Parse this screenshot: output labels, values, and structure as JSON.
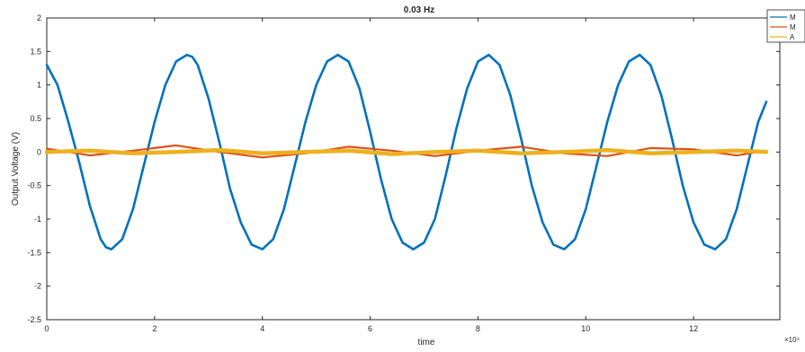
{
  "chart_data": {
    "type": "line",
    "title": "0.03 Hz",
    "xlabel": "time",
    "ylabel": "Output Voltage (V)",
    "x_multiplier": "×10⁴",
    "xlim": [
      0,
      13.6
    ],
    "ylim": [
      -2.5,
      2
    ],
    "xticks": [
      0,
      2,
      4,
      6,
      8,
      10,
      12
    ],
    "yticks": [
      -2.5,
      -2,
      -1.5,
      -1,
      -0.5,
      0,
      0.5,
      1,
      1.5,
      2
    ],
    "grid": false,
    "legend_position": "top-right",
    "legend_labels_partially_visible": [
      "M",
      "M",
      "A"
    ],
    "series": [
      {
        "color": "#0072BD",
        "x": [
          0,
          0.2,
          0.4,
          0.6,
          0.8,
          1.0,
          1.1,
          1.2,
          1.4,
          1.6,
          1.8,
          2.0,
          2.2,
          2.4,
          2.6,
          2.7,
          2.8,
          3.0,
          3.2,
          3.4,
          3.6,
          3.8,
          4.0,
          4.2,
          4.4,
          4.6,
          4.8,
          5.0,
          5.2,
          5.4,
          5.6,
          5.8,
          6.0,
          6.2,
          6.4,
          6.6,
          6.8,
          7.0,
          7.2,
          7.4,
          7.6,
          7.8,
          8.0,
          8.2,
          8.4,
          8.6,
          8.8,
          9.0,
          9.2,
          9.4,
          9.6,
          9.8,
          10.0,
          10.2,
          10.4,
          10.6,
          10.8,
          11.0,
          11.2,
          11.4,
          11.6,
          11.8,
          12.0,
          12.2,
          12.4,
          12.6,
          12.8,
          13.0,
          13.2,
          13.35
        ],
        "y": [
          1.3,
          1.0,
          0.45,
          -0.15,
          -0.8,
          -1.3,
          -1.42,
          -1.45,
          -1.3,
          -0.85,
          -0.2,
          0.45,
          1.0,
          1.35,
          1.45,
          1.42,
          1.3,
          0.8,
          0.15,
          -0.55,
          -1.05,
          -1.38,
          -1.45,
          -1.3,
          -0.85,
          -0.2,
          0.45,
          1.0,
          1.35,
          1.45,
          1.35,
          0.95,
          0.3,
          -0.4,
          -1.0,
          -1.35,
          -1.45,
          -1.35,
          -1.0,
          -0.35,
          0.35,
          0.95,
          1.35,
          1.45,
          1.3,
          0.85,
          0.2,
          -0.5,
          -1.05,
          -1.38,
          -1.45,
          -1.3,
          -0.85,
          -0.2,
          0.45,
          1.0,
          1.35,
          1.45,
          1.3,
          0.85,
          0.2,
          -0.5,
          -1.05,
          -1.38,
          -1.45,
          -1.3,
          -0.85,
          -0.2,
          0.45,
          0.75
        ]
      },
      {
        "color": "#D95319",
        "x": [
          0,
          0.8,
          1.6,
          2.4,
          3.2,
          4.0,
          4.8,
          5.6,
          6.4,
          7.2,
          8.0,
          8.8,
          9.6,
          10.4,
          11.2,
          12.0,
          12.8,
          13.35
        ],
        "y": [
          0.05,
          -0.05,
          0.02,
          0.1,
          0.0,
          -0.08,
          -0.02,
          0.08,
          0.02,
          -0.06,
          0.02,
          0.08,
          -0.02,
          -0.06,
          0.06,
          0.04,
          -0.05,
          0.02
        ]
      },
      {
        "color": "#EDB120",
        "x": [
          0,
          0.8,
          1.6,
          2.4,
          3.2,
          4.0,
          4.8,
          5.6,
          6.4,
          7.2,
          8.0,
          8.8,
          9.6,
          10.4,
          11.2,
          12.0,
          12.8,
          13.35
        ],
        "y": [
          0.0,
          0.02,
          -0.02,
          0.0,
          0.03,
          -0.02,
          0.0,
          0.02,
          -0.03,
          0.0,
          0.02,
          -0.02,
          0.0,
          0.03,
          -0.02,
          0.0,
          0.02,
          0.0
        ]
      }
    ]
  }
}
